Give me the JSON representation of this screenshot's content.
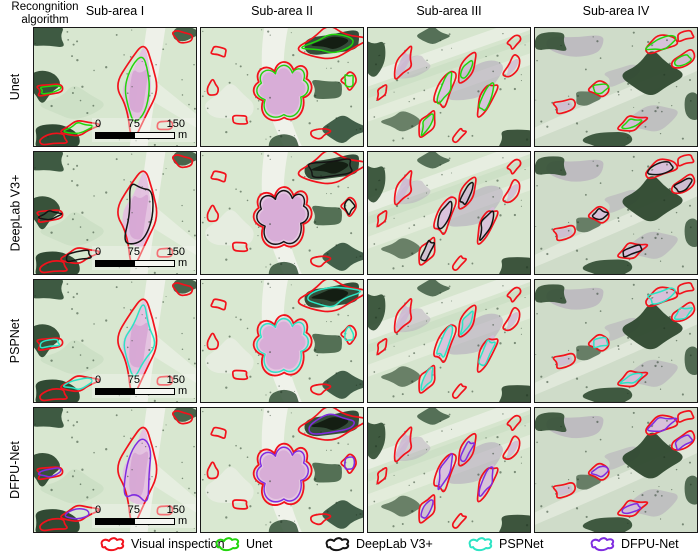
{
  "figure": {
    "corner_label": "Recongnition algorithm"
  },
  "header": {
    "columns": [
      "Sub-area I",
      "Sub-area II",
      "Sub-area III",
      "Sub-area IV"
    ]
  },
  "rows": [
    {
      "label": "Unet",
      "color": "#22d50c"
    },
    {
      "label": "DeepLab V3+",
      "color": "#141414"
    },
    {
      "label": "PSPNet",
      "color": "#2ce4c4"
    },
    {
      "label": "DFPU-Net",
      "color": "#7f2ce0"
    }
  ],
  "visual_inspection_color": "#f2121c",
  "scalebar": {
    "labels": [
      "0",
      "75",
      "150"
    ],
    "unit": "m"
  },
  "legend": [
    {
      "label": "Visual inspection",
      "color": "#f2121c"
    },
    {
      "label": "Unet",
      "color": "#22d50c"
    },
    {
      "label": "DeepLab V3+",
      "color": "#141414"
    },
    {
      "label": "PSPNet",
      "color": "#2ce4c4"
    },
    {
      "label": "DFPU-Net",
      "color": "#7f2ce0"
    }
  ]
}
